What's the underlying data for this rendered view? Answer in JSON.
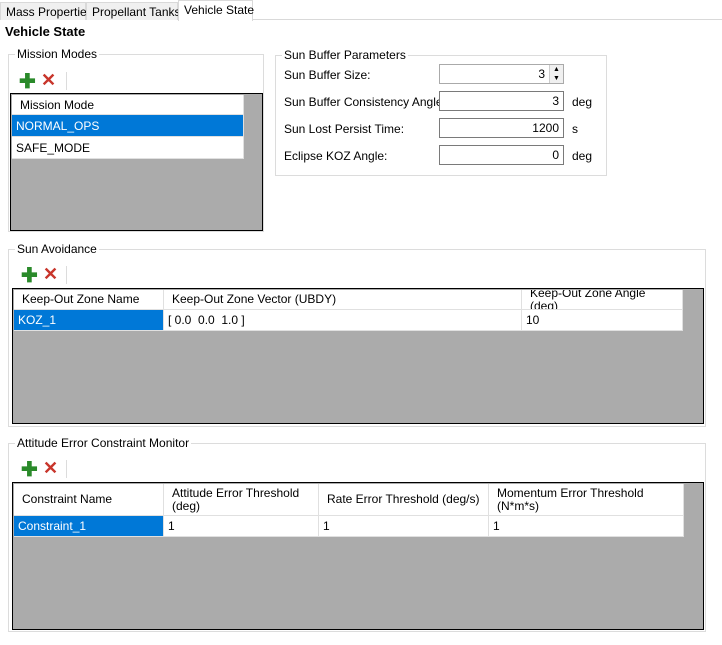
{
  "tabs": [
    {
      "label": "Mass Properties"
    },
    {
      "label": "Propellant Tanks"
    },
    {
      "label": "Vehicle State",
      "active": true
    }
  ],
  "title": "Vehicle State",
  "mission_modes": {
    "legend": "Mission Modes",
    "header": "Mission Mode",
    "rows": [
      "NORMAL_OPS",
      "SAFE_MODE"
    ],
    "selected": "NORMAL_OPS"
  },
  "sun_buffer": {
    "legend": "Sun Buffer Parameters",
    "fields": [
      {
        "label": "Sun Buffer Size:",
        "value": "3",
        "unit": ""
      },
      {
        "label": "Sun Buffer Consistency Angle:",
        "value": "3",
        "unit": "deg"
      },
      {
        "label": "Sun Lost Persist Time:",
        "value": "1200",
        "unit": "s"
      },
      {
        "label": "Eclipse KOZ Angle:",
        "value": "0",
        "unit": "deg"
      }
    ]
  },
  "sun_avoidance": {
    "legend": "Sun Avoidance",
    "columns": [
      "Keep-Out Zone Name",
      "Keep-Out Zone Vector (UBDY)",
      "Keep-Out Zone Angle (deg)"
    ],
    "rows": [
      [
        "KOZ_1",
        "[ 0.0  0.0  1.0 ]",
        "10"
      ]
    ]
  },
  "attitude": {
    "legend": "Attitude Error Constraint Monitor",
    "columns": [
      "Constraint Name",
      "Attitude Error Threshold (deg)",
      "Rate Error Threshold (deg/s)",
      "Momentum Error Threshold (N*m*s)"
    ],
    "rows": [
      [
        "Constraint_1",
        "1",
        "1",
        "1"
      ]
    ]
  },
  "icons": {
    "add": "plus-icon",
    "delete": "x-icon"
  },
  "colors": {
    "selection": "#0078d7",
    "grid_background": "#ababab",
    "add": "#2a8a2a",
    "delete": "#c8352b"
  }
}
